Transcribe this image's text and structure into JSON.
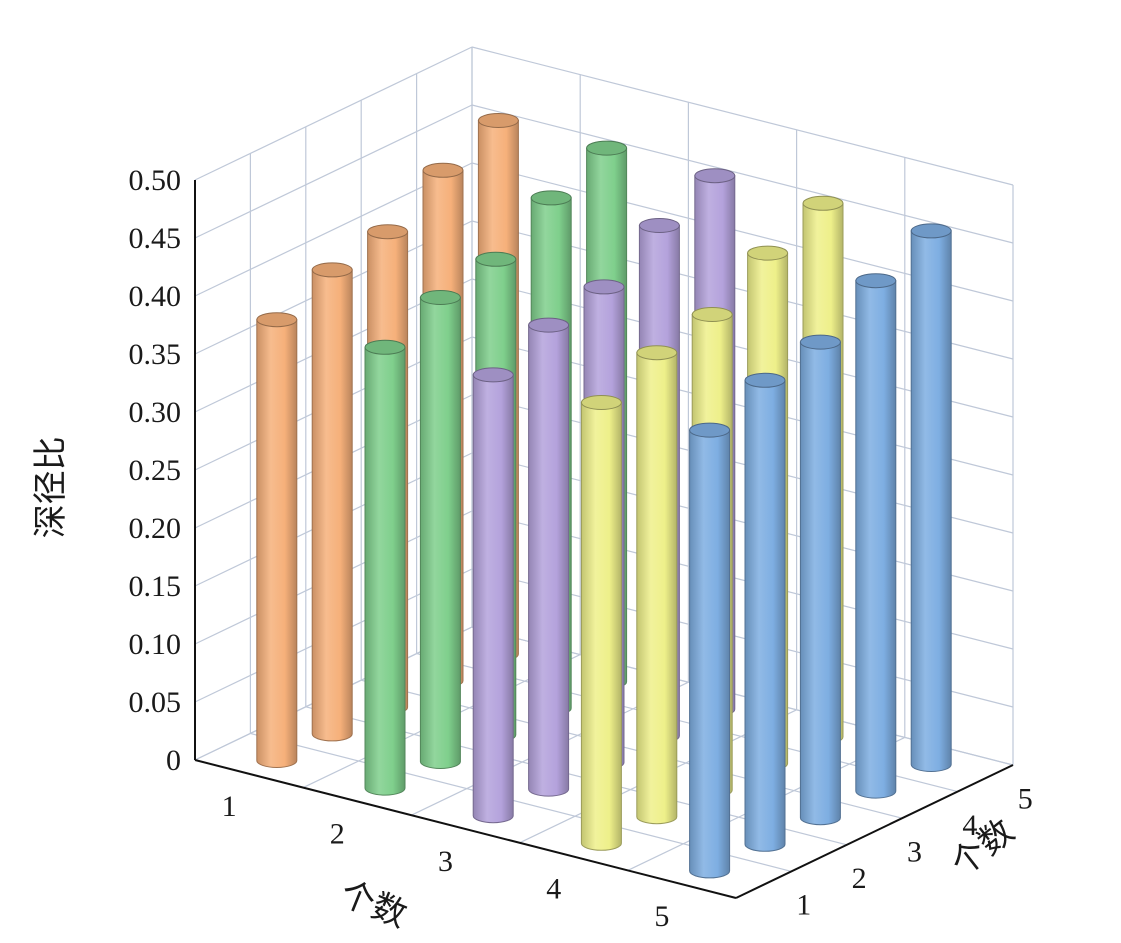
{
  "chart_data": {
    "type": "bar3d",
    "title": "",
    "xlabel": "个数",
    "ylabel": "个数",
    "zlabel": "深径比",
    "x_categories": [
      "1",
      "2",
      "3",
      "4",
      "5"
    ],
    "y_categories": [
      "1",
      "2",
      "3",
      "4",
      "5"
    ],
    "zlim": [
      0,
      0.5
    ],
    "z_ticks": [
      "0",
      "0.05",
      "0.10",
      "0.15",
      "0.20",
      "0.25",
      "0.30",
      "0.35",
      "0.40",
      "0.45",
      "0.50"
    ],
    "grid": true,
    "series": [
      {
        "x": "1",
        "color": "#f6b07a",
        "values": [
          0.38,
          0.4,
          0.41,
          0.44,
          0.46
        ]
      },
      {
        "x": "2",
        "color": "#7fcf8c",
        "values": [
          0.38,
          0.4,
          0.41,
          0.44,
          0.46
        ]
      },
      {
        "x": "3",
        "color": "#b4a2dc",
        "values": [
          0.38,
          0.4,
          0.41,
          0.44,
          0.46
        ]
      },
      {
        "x": "4",
        "color": "#eef08a",
        "values": [
          0.38,
          0.4,
          0.41,
          0.44,
          0.46
        ]
      },
      {
        "x": "5",
        "color": "#7eaee2",
        "values": [
          0.38,
          0.4,
          0.41,
          0.44,
          0.46
        ]
      }
    ]
  }
}
